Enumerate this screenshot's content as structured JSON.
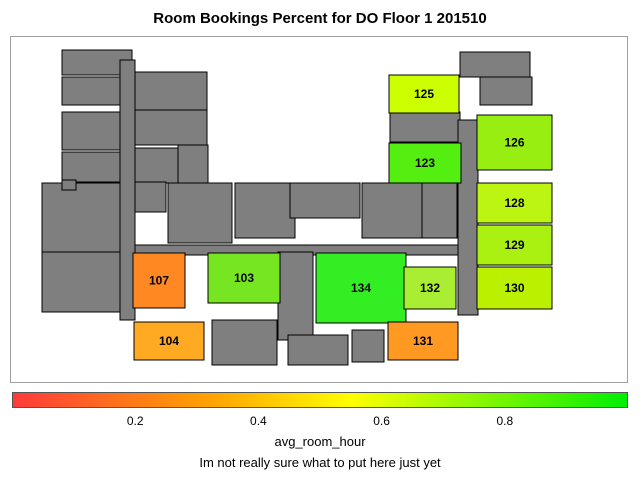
{
  "chart_data": {
    "type": "heatmap",
    "title": "Room Bookings Percent for DO Floor 1 201510",
    "rooms": [
      {
        "label": "125",
        "value": 0.62,
        "color": "#ccff00"
      },
      {
        "label": "126",
        "value": 0.78,
        "color": "#99ee11"
      },
      {
        "label": "123",
        "value": 0.88,
        "color": "#55ee11"
      },
      {
        "label": "128",
        "value": 0.72,
        "color": "#bbf511"
      },
      {
        "label": "129",
        "value": 0.74,
        "color": "#aaf011"
      },
      {
        "label": "130",
        "value": 0.7,
        "color": "#bbf000"
      },
      {
        "label": "107",
        "value": 0.22,
        "color": "#ff8822"
      },
      {
        "label": "103",
        "value": 0.8,
        "color": "#77e622"
      },
      {
        "label": "134",
        "value": 0.93,
        "color": "#33ee22"
      },
      {
        "label": "132",
        "value": 0.7,
        "color": "#aaee33"
      },
      {
        "label": "104",
        "value": 0.33,
        "color": "#ffaa22"
      },
      {
        "label": "131",
        "value": 0.32,
        "color": "#ff9922"
      }
    ],
    "legend": {
      "label": "avg_room_hour",
      "range": [
        0.0,
        1.0
      ],
      "ticks": [
        0.2,
        0.4,
        0.6,
        0.8
      ],
      "tick_labels": [
        "0.2",
        "0.4",
        "0.6",
        "0.8"
      ],
      "colors": [
        "#ff3a3a",
        "#ffa500",
        "#ffff00",
        "#00ee00"
      ]
    }
  },
  "footnote": "Im not really sure what to put here just yet"
}
